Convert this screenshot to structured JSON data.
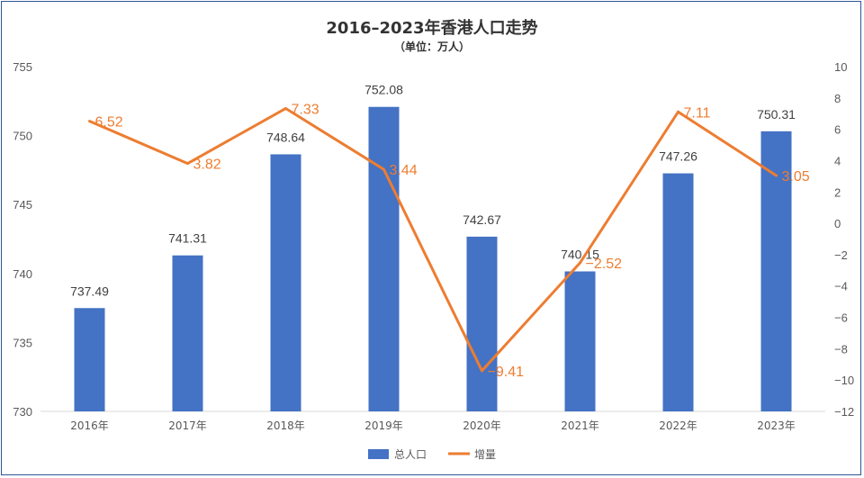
{
  "chart_data": {
    "type": "bar",
    "title": "2016–2023年香港人口走势",
    "subtitle": "（单位：万人）",
    "categories": [
      "2016年",
      "2017年",
      "2018年",
      "2019年",
      "2020年",
      "2021年",
      "2022年",
      "2023年"
    ],
    "series": [
      {
        "name": "总人口",
        "type": "bar",
        "axis": "left",
        "color": "#4472c4",
        "values": [
          737.49,
          741.31,
          748.64,
          752.08,
          742.67,
          740.15,
          747.26,
          750.31
        ],
        "labels": [
          "737.49",
          "741.31",
          "748.64",
          "752.08",
          "742.67",
          "740.15",
          "747.26",
          "750.31"
        ]
      },
      {
        "name": "增量",
        "type": "line",
        "axis": "right",
        "color": "#ed7d31",
        "values": [
          6.52,
          3.82,
          7.33,
          3.44,
          -9.41,
          -2.52,
          7.11,
          3.05
        ],
        "labels": [
          "6.52",
          "3.82",
          "7.33",
          "3.44",
          "−9.41",
          "−2.52",
          "7.11",
          "3.05"
        ]
      }
    ],
    "y_left": {
      "min": 730,
      "max": 755,
      "ticks": [
        "730",
        "735",
        "740",
        "745",
        "750",
        "755"
      ]
    },
    "y_right": {
      "min": -12,
      "max": 10,
      "ticks": [
        "−12",
        "−10",
        "−8",
        "−6",
        "−4",
        "−2",
        "0",
        "2",
        "4",
        "6",
        "8",
        "10"
      ]
    },
    "grid": false,
    "legend_position": "bottom"
  }
}
